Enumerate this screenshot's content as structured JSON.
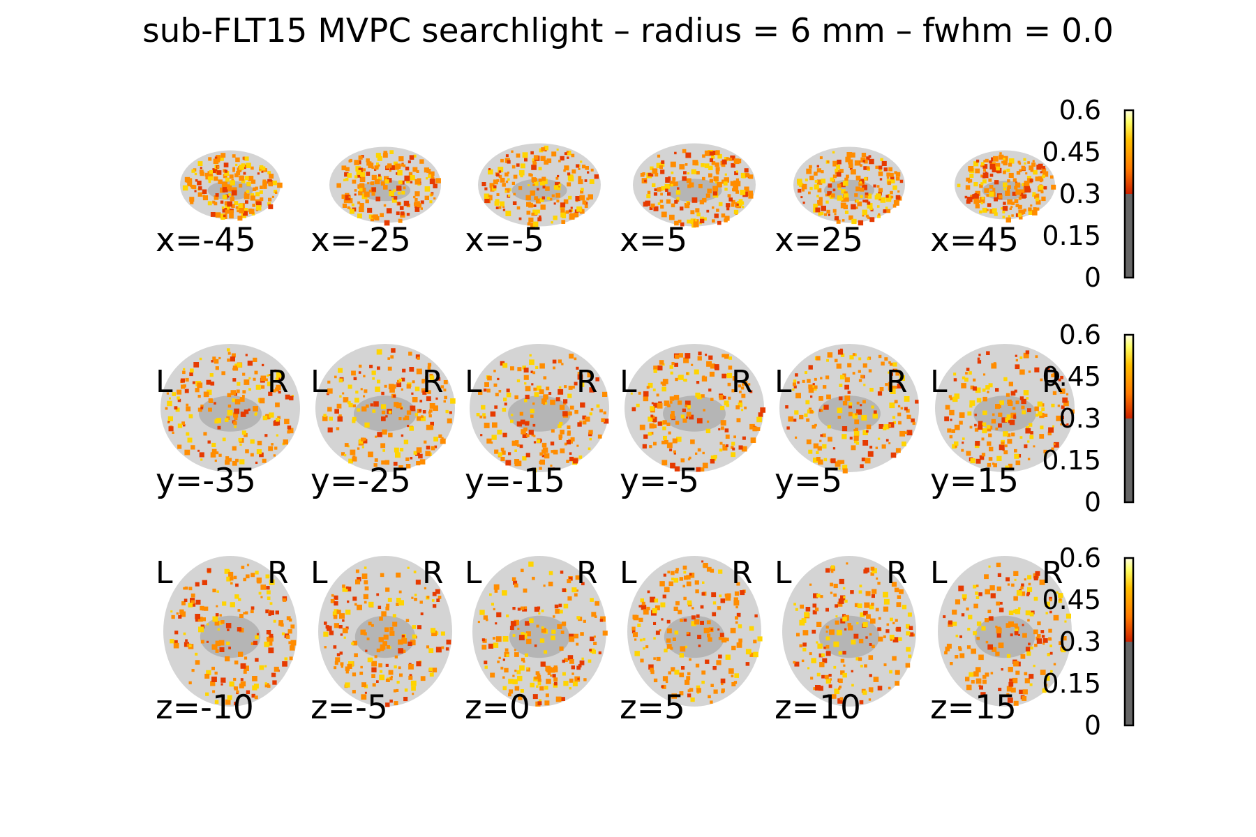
{
  "title": "sub-FLT15 MVPC searchlight – radius = 6 mm – fwhm = 0.0",
  "rows": [
    {
      "view": "sagittal",
      "labels": [
        "x=-45",
        "x=-25",
        "x=-5",
        "x=5",
        "x=25",
        "x=45"
      ],
      "side_labels": []
    },
    {
      "view": "coronal",
      "labels": [
        "y=-35",
        "y=-25",
        "y=-15",
        "y=-5",
        "y=5",
        "y=15"
      ],
      "side_labels": [
        "L",
        "R"
      ]
    },
    {
      "view": "axial",
      "labels": [
        "z=-10",
        "z=-5",
        "z=0",
        "z=5",
        "z=10",
        "z=15"
      ],
      "side_labels": [
        "L",
        "R"
      ]
    }
  ],
  "colorbar": {
    "ticks": [
      "0.6",
      "0.45",
      "0.3",
      "0.15",
      "0"
    ],
    "min": 0,
    "max": 0.6,
    "threshold": 0.3,
    "below_threshold_color": "#666666",
    "gradient": [
      "#cc2200",
      "#ff7a00",
      "#ffc000",
      "#ffff66",
      "#ffffe6"
    ]
  },
  "colors": {
    "background": "#ffffff",
    "brain_gray": "#d4d4d4",
    "overlay_orange": "#ff8c00",
    "overlay_yellow": "#ffd400",
    "overlay_red": "#e63a00"
  }
}
